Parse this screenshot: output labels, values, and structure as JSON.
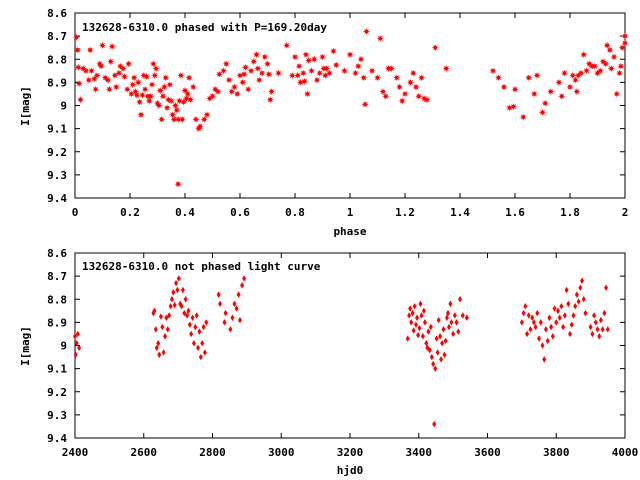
{
  "chart_data": [
    {
      "type": "scatter",
      "title": "132628-6310.0 phased with P=169.20day",
      "xlabel": "phase",
      "ylabel": "I[mag]",
      "xlim": [
        0,
        2
      ],
      "ylim": [
        8.6,
        9.4
      ],
      "y_inverted": true,
      "grid": false,
      "marker": "star",
      "color": "#ff0000",
      "xticks": [
        "0",
        "0.2",
        "0.4",
        "0.6",
        "0.8",
        "1",
        "1.2",
        "1.4",
        "1.6",
        "1.8",
        "2"
      ],
      "yticks": [
        "8.6",
        "8.7",
        "8.8",
        "8.9",
        "9",
        "9.1",
        "9.2",
        "9.3",
        "9.4"
      ],
      "points": [
        [
          0.005,
          8.705
        ],
        [
          0.01,
          8.76
        ],
        [
          0.012,
          8.835
        ],
        [
          0.015,
          8.905
        ],
        [
          0.02,
          8.975
        ],
        [
          0.03,
          8.84
        ],
        [
          0.04,
          8.85
        ],
        [
          0.05,
          8.89
        ],
        [
          0.055,
          8.76
        ],
        [
          0.06,
          8.85
        ],
        [
          0.07,
          8.885
        ],
        [
          0.075,
          8.93
        ],
        [
          0.08,
          8.87
        ],
        [
          0.09,
          8.82
        ],
        [
          0.095,
          8.83
        ],
        [
          0.1,
          8.74
        ],
        [
          0.11,
          8.88
        ],
        [
          0.12,
          8.89
        ],
        [
          0.125,
          8.93
        ],
        [
          0.13,
          8.81
        ],
        [
          0.135,
          8.745
        ],
        [
          0.145,
          8.87
        ],
        [
          0.15,
          8.92
        ],
        [
          0.16,
          8.86
        ],
        [
          0.165,
          8.83
        ],
        [
          0.175,
          8.84
        ],
        [
          0.18,
          8.875
        ],
        [
          0.19,
          8.93
        ],
        [
          0.195,
          8.82
        ],
        [
          0.205,
          8.95
        ],
        [
          0.21,
          8.91
        ],
        [
          0.215,
          8.88
        ],
        [
          0.22,
          8.94
        ],
        [
          0.225,
          8.955
        ],
        [
          0.23,
          8.9
        ],
        [
          0.235,
          8.985
        ],
        [
          0.24,
          9.04
        ],
        [
          0.245,
          8.955
        ],
        [
          0.25,
          8.87
        ],
        [
          0.255,
          8.93
        ],
        [
          0.26,
          8.875
        ],
        [
          0.265,
          8.96
        ],
        [
          0.27,
          8.98
        ],
        [
          0.275,
          8.96
        ],
        [
          0.28,
          8.91
        ],
        [
          0.285,
          8.82
        ],
        [
          0.29,
          8.87
        ],
        [
          0.295,
          8.84
        ],
        [
          0.3,
          8.99
        ],
        [
          0.305,
          9.0
        ],
        [
          0.31,
          8.935
        ],
        [
          0.315,
          9.06
        ],
        [
          0.32,
          8.96
        ],
        [
          0.325,
          8.92
        ],
        [
          0.33,
          8.88
        ],
        [
          0.335,
          9.01
        ],
        [
          0.34,
          8.975
        ],
        [
          0.345,
          8.91
        ],
        [
          0.35,
          8.98
        ],
        [
          0.355,
          9.04
        ],
        [
          0.36,
          9.06
        ],
        [
          0.365,
          9.0
        ],
        [
          0.37,
          9.02
        ],
        [
          0.375,
          9.06
        ],
        [
          0.375,
          9.34
        ],
        [
          0.38,
          8.98
        ],
        [
          0.385,
          8.87
        ],
        [
          0.39,
          9.06
        ],
        [
          0.395,
          8.985
        ],
        [
          0.4,
          8.935
        ],
        [
          0.405,
          8.97
        ],
        [
          0.41,
          8.95
        ],
        [
          0.415,
          8.88
        ],
        [
          0.42,
          8.975
        ],
        [
          0.43,
          8.92
        ],
        [
          0.44,
          9.06
        ],
        [
          0.45,
          9.1
        ],
        [
          0.455,
          9.09
        ],
        [
          0.47,
          9.06
        ],
        [
          0.48,
          9.04
        ],
        [
          0.49,
          8.97
        ],
        [
          0.5,
          8.96
        ],
        [
          0.51,
          8.93
        ],
        [
          0.52,
          8.94
        ],
        [
          0.525,
          8.865
        ],
        [
          0.54,
          8.85
        ],
        [
          0.55,
          8.82
        ],
        [
          0.56,
          8.89
        ],
        [
          0.57,
          8.94
        ],
        [
          0.58,
          8.92
        ],
        [
          0.59,
          8.95
        ],
        [
          0.6,
          8.87
        ],
        [
          0.61,
          8.9
        ],
        [
          0.615,
          8.865
        ],
        [
          0.62,
          8.835
        ],
        [
          0.63,
          8.93
        ],
        [
          0.64,
          8.85
        ],
        [
          0.65,
          8.81
        ],
        [
          0.66,
          8.78
        ],
        [
          0.665,
          8.84
        ],
        [
          0.67,
          8.89
        ],
        [
          0.68,
          8.86
        ],
        [
          0.69,
          8.79
        ],
        [
          0.7,
          8.82
        ],
        [
          0.705,
          8.865
        ],
        [
          0.71,
          8.975
        ],
        [
          0.715,
          8.94
        ],
        [
          0.74,
          8.86
        ],
        [
          0.77,
          8.74
        ],
        [
          0.79,
          8.87
        ],
        [
          0.8,
          8.79
        ],
        [
          0.81,
          8.87
        ],
        [
          0.815,
          8.83
        ],
        [
          0.82,
          8.9
        ],
        [
          0.83,
          8.86
        ],
        [
          0.835,
          8.895
        ],
        [
          0.84,
          8.78
        ],
        [
          0.845,
          8.95
        ],
        [
          0.85,
          8.805
        ],
        [
          0.86,
          8.85
        ],
        [
          0.87,
          8.8
        ],
        [
          0.88,
          8.89
        ],
        [
          0.89,
          8.86
        ],
        [
          0.9,
          8.79
        ],
        [
          0.905,
          8.84
        ],
        [
          0.91,
          8.87
        ],
        [
          0.915,
          8.84
        ],
        [
          0.925,
          8.86
        ],
        [
          0.94,
          8.765
        ],
        [
          0.95,
          8.825
        ],
        [
          0.98,
          8.85
        ],
        [
          1.0,
          8.78
        ],
        [
          1.02,
          8.86
        ],
        [
          1.03,
          8.83
        ],
        [
          1.04,
          8.8
        ],
        [
          1.05,
          8.88
        ],
        [
          1.055,
          8.995
        ],
        [
          1.06,
          8.68
        ],
        [
          1.08,
          8.85
        ],
        [
          1.1,
          8.88
        ],
        [
          1.11,
          8.71
        ],
        [
          1.12,
          8.94
        ],
        [
          1.13,
          8.96
        ],
        [
          1.14,
          8.84
        ],
        [
          1.15,
          8.84
        ],
        [
          1.17,
          8.88
        ],
        [
          1.18,
          8.92
        ],
        [
          1.19,
          8.98
        ],
        [
          1.2,
          8.95
        ],
        [
          1.22,
          8.9
        ],
        [
          1.23,
          8.86
        ],
        [
          1.24,
          8.92
        ],
        [
          1.25,
          8.96
        ],
        [
          1.26,
          8.88
        ],
        [
          1.27,
          8.97
        ],
        [
          1.28,
          8.975
        ],
        [
          1.31,
          8.75
        ],
        [
          1.35,
          8.84
        ],
        [
          1.52,
          8.85
        ],
        [
          1.54,
          8.88
        ],
        [
          1.56,
          8.92
        ],
        [
          1.58,
          9.01
        ],
        [
          1.595,
          9.005
        ],
        [
          1.6,
          8.93
        ],
        [
          1.63,
          9.05
        ],
        [
          1.65,
          8.88
        ],
        [
          1.67,
          8.95
        ],
        [
          1.68,
          8.87
        ],
        [
          1.7,
          9.03
        ],
        [
          1.71,
          8.99
        ],
        [
          1.73,
          8.94
        ],
        [
          1.76,
          8.9
        ],
        [
          1.77,
          8.96
        ],
        [
          1.78,
          8.86
        ],
        [
          1.8,
          8.92
        ],
        [
          1.81,
          8.87
        ],
        [
          1.82,
          8.89
        ],
        [
          1.825,
          8.94
        ],
        [
          1.83,
          8.87
        ],
        [
          1.84,
          8.86
        ],
        [
          1.85,
          8.78
        ],
        [
          1.86,
          8.85
        ],
        [
          1.87,
          8.82
        ],
        [
          1.88,
          8.83
        ],
        [
          1.89,
          8.83
        ],
        [
          1.9,
          8.86
        ],
        [
          1.91,
          8.85
        ],
        [
          1.92,
          8.81
        ],
        [
          1.93,
          8.82
        ],
        [
          1.935,
          8.74
        ],
        [
          1.945,
          8.76
        ],
        [
          1.95,
          8.84
        ],
        [
          1.96,
          8.79
        ],
        [
          1.97,
          8.95
        ],
        [
          1.98,
          8.86
        ],
        [
          1.985,
          8.83
        ],
        [
          1.99,
          8.75
        ],
        [
          2.0,
          8.73
        ],
        [
          2.0,
          8.7
        ]
      ]
    },
    {
      "type": "scatter",
      "title": "132628-6310.0 not phased light curve",
      "xlabel": "hjd0",
      "ylabel": "I[mag]",
      "xlim": [
        2400,
        4000
      ],
      "ylim": [
        8.6,
        9.4
      ],
      "y_inverted": true,
      "grid": false,
      "marker": "diamond",
      "color": "#ff0000",
      "xticks": [
        "2400",
        "2600",
        "2800",
        "3000",
        "3200",
        "3400",
        "3600",
        "3800",
        "4000"
      ],
      "yticks": [
        "8.6",
        "8.7",
        "8.8",
        "8.9",
        "9",
        "9.1",
        "9.2",
        "9.3",
        "9.4"
      ],
      "points": [
        [
          2400,
          8.96
        ],
        [
          2402,
          9.04
        ],
        [
          2405,
          8.99
        ],
        [
          2408,
          8.95
        ],
        [
          2412,
          9.01
        ],
        [
          2628,
          8.86
        ],
        [
          2631,
          8.85
        ],
        [
          2635,
          8.93
        ],
        [
          2638,
          9.01
        ],
        [
          2642,
          8.99
        ],
        [
          2645,
          9.04
        ],
        [
          2650,
          8.875
        ],
        [
          2654,
          8.92
        ],
        [
          2658,
          9.03
        ],
        [
          2662,
          8.96
        ],
        [
          2666,
          8.88
        ],
        [
          2670,
          8.93
        ],
        [
          2674,
          8.87
        ],
        [
          2678,
          8.83
        ],
        [
          2682,
          8.8
        ],
        [
          2686,
          8.77
        ],
        [
          2690,
          8.825
        ],
        [
          2694,
          8.73
        ],
        [
          2698,
          8.76
        ],
        [
          2702,
          8.71
        ],
        [
          2706,
          8.82
        ],
        [
          2710,
          8.83
        ],
        [
          2714,
          8.76
        ],
        [
          2718,
          8.86
        ],
        [
          2722,
          8.8
        ],
        [
          2726,
          8.87
        ],
        [
          2730,
          8.85
        ],
        [
          2734,
          8.91
        ],
        [
          2738,
          8.95
        ],
        [
          2742,
          8.88
        ],
        [
          2746,
          8.99
        ],
        [
          2750,
          8.92
        ],
        [
          2754,
          8.87
        ],
        [
          2758,
          9.01
        ],
        [
          2762,
          8.94
        ],
        [
          2766,
          9.05
        ],
        [
          2770,
          8.99
        ],
        [
          2774,
          8.92
        ],
        [
          2778,
          9.03
        ],
        [
          2782,
          8.9
        ],
        [
          2818,
          8.78
        ],
        [
          2822,
          8.82
        ],
        [
          2835,
          8.9
        ],
        [
          2838,
          8.86
        ],
        [
          2852,
          8.93
        ],
        [
          2858,
          8.88
        ],
        [
          2864,
          8.82
        ],
        [
          2870,
          8.84
        ],
        [
          2876,
          8.78
        ],
        [
          2880,
          8.89
        ],
        [
          2886,
          8.74
        ],
        [
          2892,
          8.71
        ],
        [
          3368,
          8.97
        ],
        [
          3372,
          8.87
        ],
        [
          3375,
          8.84
        ],
        [
          3378,
          8.9
        ],
        [
          3382,
          8.86
        ],
        [
          3385,
          8.935
        ],
        [
          3388,
          8.83
        ],
        [
          3392,
          8.91
        ],
        [
          3395,
          8.88
        ],
        [
          3398,
          8.955
        ],
        [
          3402,
          8.925
        ],
        [
          3405,
          8.82
        ],
        [
          3408,
          8.87
        ],
        [
          3412,
          8.96
        ],
        [
          3415,
          8.85
        ],
        [
          3418,
          8.9
        ],
        [
          3422,
          8.99
        ],
        [
          3425,
          9.01
        ],
        [
          3428,
          8.94
        ],
        [
          3432,
          9.02
        ],
        [
          3435,
          8.92
        ],
        [
          3438,
          9.05
        ],
        [
          3442,
          9.08
        ],
        [
          3445,
          9.34
        ],
        [
          3448,
          9.1
        ],
        [
          3452,
          8.97
        ],
        [
          3455,
          9.03
        ],
        [
          3458,
          8.89
        ],
        [
          3462,
          8.96
        ],
        [
          3465,
          9.06
        ],
        [
          3468,
          8.99
        ],
        [
          3472,
          8.93
        ],
        [
          3475,
          9.04
        ],
        [
          3478,
          8.98
        ],
        [
          3482,
          8.88
        ],
        [
          3485,
          8.86
        ],
        [
          3488,
          8.92
        ],
        [
          3492,
          8.82
        ],
        [
          3495,
          8.9
        ],
        [
          3500,
          8.95
        ],
        [
          3505,
          8.87
        ],
        [
          3510,
          8.9
        ],
        [
          3515,
          8.94
        ],
        [
          3520,
          8.8
        ],
        [
          3528,
          8.87
        ],
        [
          3540,
          8.88
        ],
        [
          3700,
          8.9
        ],
        [
          3705,
          8.86
        ],
        [
          3710,
          8.83
        ],
        [
          3715,
          8.95
        ],
        [
          3720,
          8.87
        ],
        [
          3725,
          8.93
        ],
        [
          3730,
          8.88
        ],
        [
          3735,
          8.9
        ],
        [
          3740,
          8.92
        ],
        [
          3745,
          8.86
        ],
        [
          3750,
          8.97
        ],
        [
          3755,
          8.9
        ],
        [
          3760,
          9.0
        ],
        [
          3765,
          9.06
        ],
        [
          3770,
          8.93
        ],
        [
          3775,
          8.98
        ],
        [
          3780,
          8.88
        ],
        [
          3785,
          8.92
        ],
        [
          3790,
          8.96
        ],
        [
          3795,
          8.84
        ],
        [
          3800,
          8.9
        ],
        [
          3805,
          8.85
        ],
        [
          3810,
          8.88
        ],
        [
          3815,
          8.83
        ],
        [
          3820,
          8.92
        ],
        [
          3825,
          8.87
        ],
        [
          3830,
          8.76
        ],
        [
          3835,
          8.82
        ],
        [
          3840,
          8.95
        ],
        [
          3845,
          8.91
        ],
        [
          3850,
          8.87
        ],
        [
          3855,
          8.83
        ],
        [
          3860,
          8.78
        ],
        [
          3865,
          8.81
        ],
        [
          3870,
          8.75
        ],
        [
          3875,
          8.72
        ],
        [
          3880,
          8.8
        ],
        [
          3885,
          8.86
        ],
        [
          3900,
          8.92
        ],
        [
          3905,
          8.95
        ],
        [
          3910,
          8.87
        ],
        [
          3915,
          8.9
        ],
        [
          3920,
          8.93
        ],
        [
          3925,
          8.96
        ],
        [
          3930,
          8.89
        ],
        [
          3935,
          8.93
        ],
        [
          3940,
          8.86
        ],
        [
          3945,
          8.75
        ],
        [
          3950,
          8.93
        ]
      ]
    }
  ]
}
